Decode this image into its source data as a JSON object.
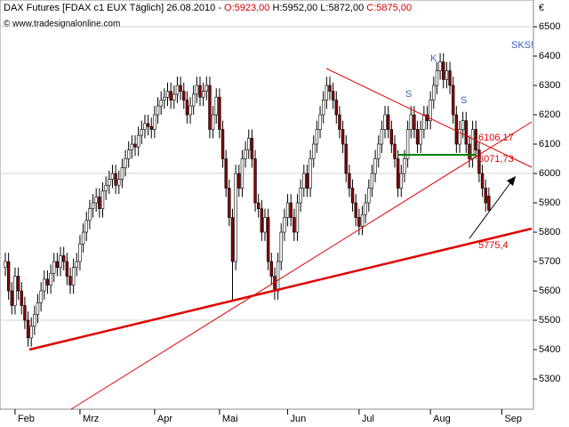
{
  "chart_data": {
    "type": "candlestick",
    "title": "DAX Futures [FDAX c1 EUX  Täglich] 26.08.2010 -",
    "ohlc_labels": [
      "O:5923,00",
      "H:5952,00 L:5872,00",
      "C:5875,00"
    ],
    "copyright": "© www.tradesignalonline.com",
    "currency": "€",
    "annotations": {
      "skst": "SKS!",
      "s1": "S",
      "k": "K",
      "s2": "S",
      "level1": "6106,17",
      "level2": "6071,73",
      "level3": "5775,4"
    },
    "up_color": "#ffffff",
    "down_color": "#8b0000",
    "ylim": [
      5197,
      6591
    ],
    "yticks": [
      5300,
      5400,
      5500,
      5600,
      5700,
      5800,
      5900,
      6000,
      6100,
      6200,
      6300,
      6400,
      6500
    ],
    "gridlines": [
      5500,
      6000,
      6500
    ],
    "categories": [
      null,
      null,
      null,
      "Feb",
      null,
      null,
      null,
      null,
      null,
      null,
      null,
      null,
      null,
      null,
      null,
      null,
      null,
      null,
      null,
      null,
      null,
      null,
      null,
      "Mrz",
      null,
      null,
      null,
      null,
      null,
      null,
      null,
      null,
      null,
      null,
      null,
      null,
      null,
      null,
      null,
      null,
      null,
      null,
      null,
      null,
      null,
      null,
      "Apr",
      null,
      null,
      null,
      null,
      null,
      null,
      null,
      null,
      null,
      null,
      null,
      null,
      null,
      null,
      null,
      null,
      null,
      null,
      null,
      "Mai",
      null,
      null,
      null,
      null,
      null,
      null,
      null,
      null,
      null,
      null,
      null,
      null,
      null,
      null,
      null,
      null,
      null,
      null,
      null,
      null,
      "Jun",
      null,
      null,
      null,
      null,
      null,
      null,
      null,
      null,
      null,
      null,
      null,
      null,
      null,
      null,
      null,
      null,
      null,
      null,
      null,
      null,
      null,
      "Jul",
      null,
      null,
      null,
      null,
      null,
      null,
      null,
      null,
      null,
      null,
      null,
      null,
      null,
      null,
      null,
      null,
      null,
      null,
      null,
      null,
      null,
      "Aug",
      null,
      null,
      null,
      null,
      null,
      null,
      null,
      null,
      null,
      null,
      null,
      null,
      null,
      null,
      null,
      null,
      null,
      null,
      null,
      null,
      null,
      "Sep"
    ],
    "open": [
      5680,
      5700,
      5600,
      5550,
      5650,
      5600,
      5550,
      5500,
      5440,
      5480,
      5520,
      5560,
      5600,
      5640,
      5620,
      5660,
      5700,
      5680,
      5720,
      5700,
      5650,
      5620,
      5680,
      5700,
      5760,
      5800,
      5840,
      5880,
      5900,
      5920,
      5880,
      5940,
      5960,
      5980,
      6000,
      5960,
      5980,
      6020,
      6050,
      6080,
      6100,
      6090,
      6130,
      6150,
      6170,
      6160,
      6150,
      6200,
      6230,
      6250,
      6260,
      6280,
      6250,
      6270,
      6300,
      6280,
      6250,
      6200,
      6230,
      6270,
      6300,
      6260,
      6280,
      6300,
      6150,
      6200,
      6260,
      6150,
      6050,
      5950,
      5850,
      5700,
      6000,
      5950,
      6050,
      6080,
      6120,
      6050,
      5900,
      5880,
      5800,
      5850,
      5700,
      5650,
      5600,
      5700,
      5800,
      5850,
      5900,
      5850,
      5800,
      5900,
      5950,
      6000,
      5950,
      6050,
      6100,
      6150,
      6200,
      6250,
      6300,
      6280,
      6250,
      6200,
      6150,
      6100,
      6000,
      5950,
      5900,
      5850,
      5820,
      5860,
      5900,
      5950,
      6000,
      6050,
      6100,
      6150,
      6200,
      6150,
      6100,
      6050,
      5950,
      6000,
      6050,
      6150,
      6200,
      6150,
      6100,
      6150,
      6200,
      6180,
      6250,
      6300,
      6350,
      6380,
      6320,
      6350,
      6300,
      6200,
      6100,
      6150,
      6180,
      6100,
      6050,
      6150,
      6080,
      6000,
      5950,
      5923,
      null,
      null,
      null,
      null
    ],
    "high": [
      5730,
      5730,
      5630,
      5680,
      5680,
      5630,
      5580,
      5530,
      5510,
      5550,
      5590,
      5630,
      5670,
      5670,
      5690,
      5730,
      5730,
      5750,
      5750,
      5730,
      5680,
      5710,
      5730,
      5790,
      5830,
      5870,
      5910,
      5930,
      5950,
      5950,
      5970,
      5990,
      6010,
      6030,
      6030,
      6010,
      6050,
      6080,
      6110,
      6130,
      6130,
      6160,
      6180,
      6200,
      6200,
      6190,
      6230,
      6260,
      6280,
      6290,
      6310,
      6310,
      6300,
      6330,
      6330,
      6310,
      6280,
      6260,
      6300,
      6330,
      6330,
      6310,
      6330,
      6330,
      6230,
      6290,
      6290,
      6180,
      6080,
      5980,
      5880,
      6030,
      6030,
      6080,
      6110,
      6150,
      6150,
      6080,
      5930,
      5910,
      5880,
      5880,
      5730,
      5680,
      5730,
      5830,
      5880,
      5930,
      5930,
      5880,
      5930,
      5980,
      6030,
      6030,
      6080,
      6130,
      6180,
      6230,
      6280,
      6330,
      6330,
      6310,
      6280,
      6230,
      6180,
      6130,
      6030,
      5980,
      5930,
      5880,
      5890,
      5930,
      5980,
      6030,
      6080,
      6130,
      6180,
      6230,
      6230,
      6180,
      6130,
      6080,
      6030,
      6080,
      6180,
      6230,
      6230,
      6180,
      6180,
      6230,
      6230,
      6280,
      6330,
      6380,
      6410,
      6410,
      6380,
      6380,
      6330,
      6230,
      6180,
      6210,
      6210,
      6130,
      6180,
      6180,
      6110,
      6030,
      5980,
      5952,
      null,
      null,
      null,
      null
    ],
    "low": [
      5650,
      5570,
      5520,
      5520,
      5570,
      5520,
      5470,
      5410,
      5410,
      5450,
      5490,
      5530,
      5570,
      5590,
      5590,
      5630,
      5650,
      5650,
      5670,
      5620,
      5590,
      5590,
      5650,
      5670,
      5730,
      5770,
      5810,
      5850,
      5870,
      5850,
      5850,
      5910,
      5930,
      5950,
      5930,
      5930,
      5950,
      5990,
      6020,
      6050,
      6060,
      6060,
      6100,
      6120,
      6130,
      6120,
      6120,
      6170,
      6200,
      6220,
      6230,
      6220,
      6220,
      6240,
      6250,
      6220,
      6170,
      6170,
      6200,
      6240,
      6230,
      6230,
      6250,
      6120,
      6120,
      6170,
      6120,
      6020,
      5920,
      5820,
      5570,
      5670,
      5920,
      5920,
      6020,
      6050,
      6020,
      5870,
      5850,
      5770,
      5770,
      5670,
      5620,
      5570,
      5570,
      5670,
      5770,
      5820,
      5820,
      5770,
      5770,
      5870,
      5920,
      5920,
      5920,
      6020,
      6070,
      6120,
      6170,
      6220,
      6250,
      6220,
      6170,
      6120,
      6070,
      5970,
      5920,
      5870,
      5820,
      5790,
      5790,
      5830,
      5870,
      5920,
      5970,
      6020,
      6070,
      6120,
      6120,
      6070,
      6020,
      5920,
      5920,
      5970,
      6020,
      6120,
      6120,
      6070,
      6070,
      6120,
      6150,
      6150,
      6220,
      6270,
      6320,
      6290,
      6290,
      6270,
      6170,
      6070,
      6070,
      6120,
      6070,
      6020,
      6020,
      6050,
      5970,
      5920,
      5870,
      5872,
      null,
      null,
      null,
      null
    ],
    "close": [
      5700,
      5600,
      5550,
      5650,
      5600,
      5550,
      5500,
      5440,
      5480,
      5520,
      5560,
      5600,
      5640,
      5620,
      5660,
      5700,
      5680,
      5720,
      5700,
      5650,
      5620,
      5680,
      5700,
      5760,
      5800,
      5840,
      5880,
      5900,
      5920,
      5880,
      5940,
      5960,
      5980,
      6000,
      5960,
      5980,
      6020,
      6050,
      6080,
      6100,
      6090,
      6130,
      6150,
      6170,
      6160,
      6150,
      6200,
      6230,
      6250,
      6260,
      6280,
      6250,
      6270,
      6300,
      6280,
      6250,
      6200,
      6230,
      6270,
      6300,
      6260,
      6280,
      6300,
      6150,
      6200,
      6260,
      6150,
      6050,
      5950,
      5850,
      5700,
      6000,
      5950,
      6050,
      6080,
      6120,
      6050,
      5900,
      5880,
      5800,
      5850,
      5700,
      5650,
      5600,
      5700,
      5800,
      5850,
      5900,
      5850,
      5800,
      5900,
      5950,
      6000,
      5950,
      6050,
      6100,
      6150,
      6200,
      6250,
      6300,
      6280,
      6250,
      6200,
      6150,
      6100,
      6000,
      5950,
      5900,
      5850,
      5820,
      5860,
      5900,
      5950,
      6000,
      6050,
      6100,
      6150,
      6200,
      6150,
      6100,
      6050,
      5950,
      6000,
      6050,
      6150,
      6200,
      6150,
      6100,
      6150,
      6200,
      6180,
      6250,
      6300,
      6350,
      6380,
      6320,
      6350,
      6300,
      6200,
      6100,
      6150,
      6180,
      6100,
      6050,
      6150,
      6080,
      6000,
      5950,
      5900,
      5875,
      null,
      null,
      null,
      null
    ]
  }
}
